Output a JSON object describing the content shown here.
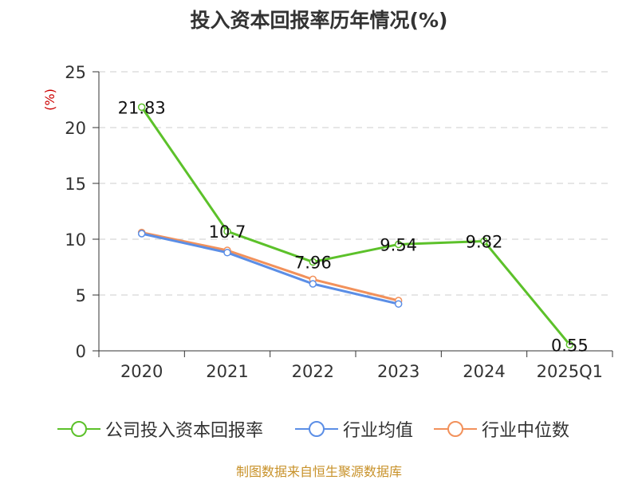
{
  "title": "投入资本回报率历年情况(%)",
  "source": "制图数据来自恒生聚源数据库",
  "chart_data": {
    "type": "line",
    "ylabel": "(%)",
    "ylim": [
      0,
      25
    ],
    "yticks": [
      0,
      5,
      10,
      15,
      20,
      25
    ],
    "grid": true,
    "legend_position": "bottom",
    "categories": [
      "2020",
      "2021",
      "2022",
      "2023",
      "2024",
      "2025Q1"
    ],
    "series": [
      {
        "name": "公司投入资本回报率",
        "color": "#5cc12a",
        "values": [
          21.83,
          10.7,
          7.96,
          9.54,
          9.82,
          0.55
        ],
        "data_labels": [
          "21.83",
          "10.7",
          "7.96",
          "9.54",
          "9.82",
          "0.55"
        ]
      },
      {
        "name": "行业均值",
        "color": "#5b8ee6",
        "values": [
          10.5,
          8.8,
          6.0,
          4.2,
          null,
          null
        ]
      },
      {
        "name": "行业中位数",
        "color": "#f2915b",
        "values": [
          10.6,
          9.0,
          6.4,
          4.5,
          null,
          null
        ]
      }
    ]
  }
}
